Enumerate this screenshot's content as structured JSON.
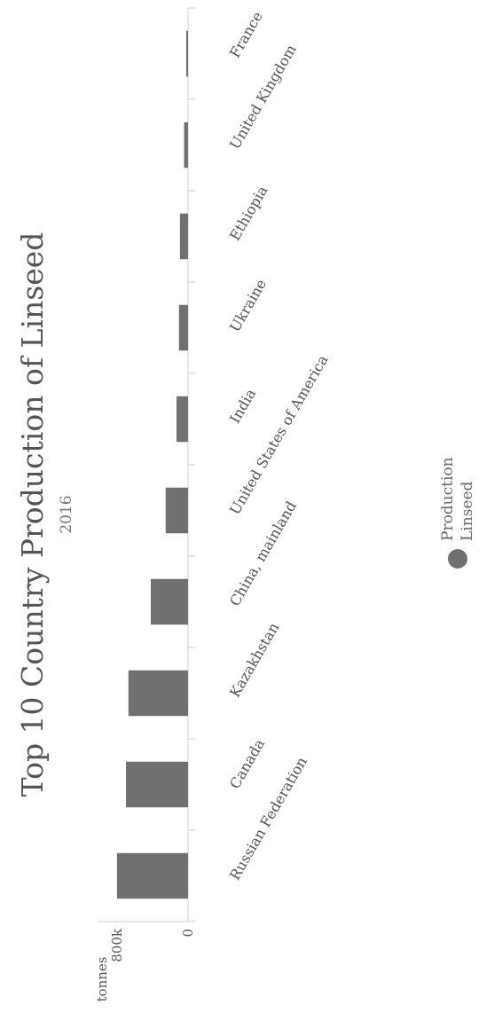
{
  "chart_data": {
    "type": "bar",
    "title": "Top 10 Country Production of Linseed",
    "subtitle": "2016",
    "categories": [
      "Russian Federation",
      "Canada",
      "Kazakhstan",
      "China, mainland",
      "United States of America",
      "India",
      "Ukraine",
      "Ethiopia",
      "United Kingdom",
      "France"
    ],
    "series": [
      {
        "name": "Production Linseed",
        "values": [
          801000,
          700000,
          672000,
          420000,
          252000,
          130000,
          102000,
          91000,
          45000,
          20000
        ]
      }
    ],
    "ylabel": "tonnes",
    "ylim": [
      0,
      800000
    ],
    "yticks": [
      {
        "value": 0,
        "label": "0"
      },
      {
        "value": 800000,
        "label": "800k"
      }
    ],
    "legend": {
      "position": "bottom",
      "lines": [
        "Production",
        "Linseed"
      ]
    },
    "colors": {
      "bar": "#707070",
      "axis": "#cccccc"
    },
    "grid": false
  }
}
